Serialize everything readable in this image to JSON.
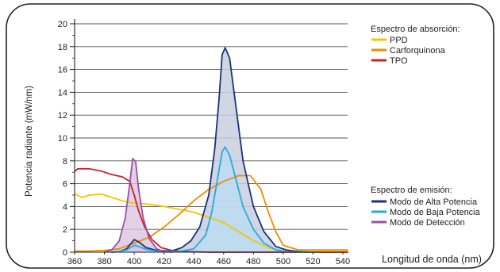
{
  "chart_data": {
    "type": "line",
    "xlabel": "Longitud de onda (nm)",
    "ylabel": "Potencia radiante (mW/nm)",
    "xlim": [
      360,
      540
    ],
    "ylim": [
      0,
      20
    ],
    "x_ticks": [
      "360",
      "380",
      "400",
      "420",
      "440",
      "460",
      "480",
      "500",
      "520",
      "540"
    ],
    "y_ticks": [
      "0",
      "2",
      "4",
      "6",
      "8",
      "10",
      "12",
      "14",
      "16",
      "18",
      "20"
    ],
    "grid": "horizontal",
    "legend": {
      "absorption_title": "Espectro de absorción:",
      "emission_title": "Espectro de emisión:",
      "placement": "right"
    },
    "absorption_series": [
      {
        "name": "PPD",
        "color": "#f5c400",
        "x": [
          355,
          365,
          370,
          378,
          385,
          392,
          400,
          410,
          420,
          440,
          460,
          470,
          480,
          490,
          500,
          510,
          545
        ],
        "y": [
          5.1,
          4.8,
          5.0,
          5.1,
          4.8,
          4.5,
          4.3,
          4.2,
          4.0,
          3.5,
          2.6,
          1.8,
          1.0,
          0.4,
          0.1,
          0.05,
          0.05
        ]
      },
      {
        "name": "Carforquinona",
        "color": "#f08c00",
        "x": [
          355,
          370,
          380,
          390,
          400,
          410,
          420,
          430,
          440,
          450,
          460,
          470,
          478,
          485,
          490,
          495,
          500,
          510,
          545
        ],
        "y": [
          0.1,
          0.1,
          0.15,
          0.3,
          0.8,
          1.3,
          2.2,
          3.3,
          4.5,
          5.5,
          6.2,
          6.7,
          6.7,
          5.5,
          3.5,
          1.8,
          0.6,
          0.2,
          0.2
        ]
      },
      {
        "name": "TPO",
        "color": "#d42020",
        "x": [
          355,
          362,
          370,
          378,
          385,
          392,
          397,
          400,
          403,
          407,
          412,
          418,
          425,
          435,
          450,
          545
        ],
        "y": [
          7.1,
          7.3,
          7.3,
          7.1,
          6.8,
          6.6,
          6.2,
          5.0,
          3.6,
          2.2,
          1.1,
          0.4,
          0.15,
          0.05,
          0.0,
          0.0
        ]
      }
    ],
    "emission_series": [
      {
        "name": "Modo de Alta Potencia",
        "color": "#16347a",
        "x": [
          385,
          390,
          395,
          400,
          403,
          408,
          415,
          425,
          432,
          438,
          444,
          450,
          454,
          457,
          459,
          461,
          464,
          468,
          473,
          480,
          487,
          495,
          502,
          510,
          520
        ],
        "y": [
          0.0,
          0.05,
          0.3,
          1.1,
          0.9,
          0.4,
          0.15,
          0.1,
          0.4,
          1.0,
          2.2,
          5.0,
          9.0,
          13.5,
          17.3,
          17.9,
          17.0,
          13.0,
          8.0,
          4.0,
          1.8,
          0.5,
          0.2,
          0.05,
          0.0
        ]
      },
      {
        "name": "Modo de Baja Potencia",
        "color": "#2aa8e0",
        "x": [
          385,
          390,
          395,
          400,
          403,
          408,
          415,
          430,
          440,
          448,
          452,
          456,
          459,
          461,
          464,
          468,
          473,
          480,
          487,
          495,
          502,
          510,
          520
        ],
        "y": [
          0.0,
          0.05,
          0.2,
          0.6,
          0.5,
          0.25,
          0.1,
          0.05,
          0.3,
          1.5,
          3.5,
          6.5,
          8.8,
          9.2,
          8.5,
          6.5,
          4.0,
          2.0,
          0.8,
          0.2,
          0.05,
          0.0,
          0.0
        ]
      },
      {
        "name": "Modo de Detección",
        "color": "#9b4fa8",
        "x": [
          380,
          385,
          390,
          394,
          397,
          399,
          401,
          403,
          406,
          410,
          415,
          420,
          425
        ],
        "y": [
          0.0,
          0.2,
          1.0,
          3.0,
          6.0,
          8.2,
          7.9,
          5.5,
          3.0,
          1.2,
          0.3,
          0.05,
          0.0
        ]
      }
    ]
  }
}
